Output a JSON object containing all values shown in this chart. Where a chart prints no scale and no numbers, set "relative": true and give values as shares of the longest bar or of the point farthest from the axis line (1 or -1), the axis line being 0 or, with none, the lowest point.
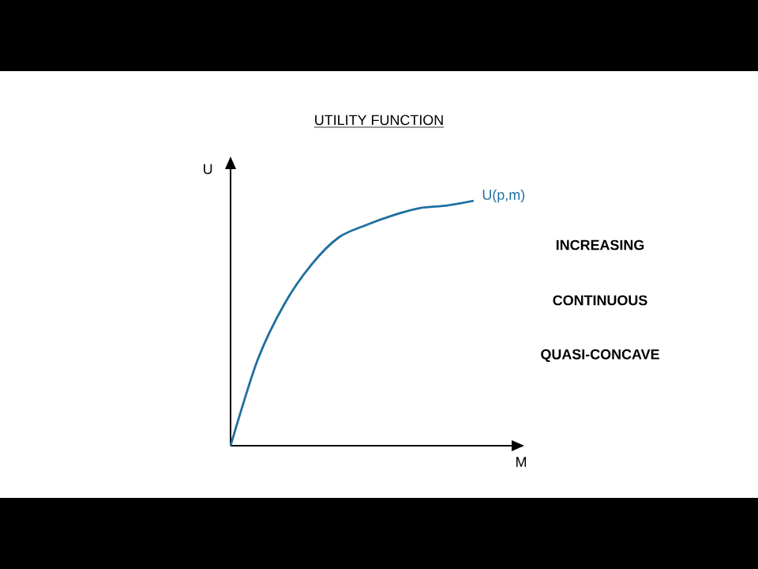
{
  "chart_data": {
    "type": "line",
    "title": "UTILITY FUNCTION",
    "xlabel": "M",
    "ylabel": "U",
    "relative": true,
    "categories": [
      null,
      null,
      null,
      null,
      null,
      null,
      null,
      null,
      null,
      null
    ],
    "series": [
      {
        "name": "U(p,m)",
        "color": "#1f6fa0",
        "values": [
          0,
          0.35,
          0.58,
          0.74,
          0.85,
          0.9,
          0.94,
          0.97,
          0.98,
          1.0
        ]
      }
    ],
    "annotations": [
      "INCREASING",
      "CONTINUOUS",
      "QUASI-CONCAVE"
    ]
  }
}
